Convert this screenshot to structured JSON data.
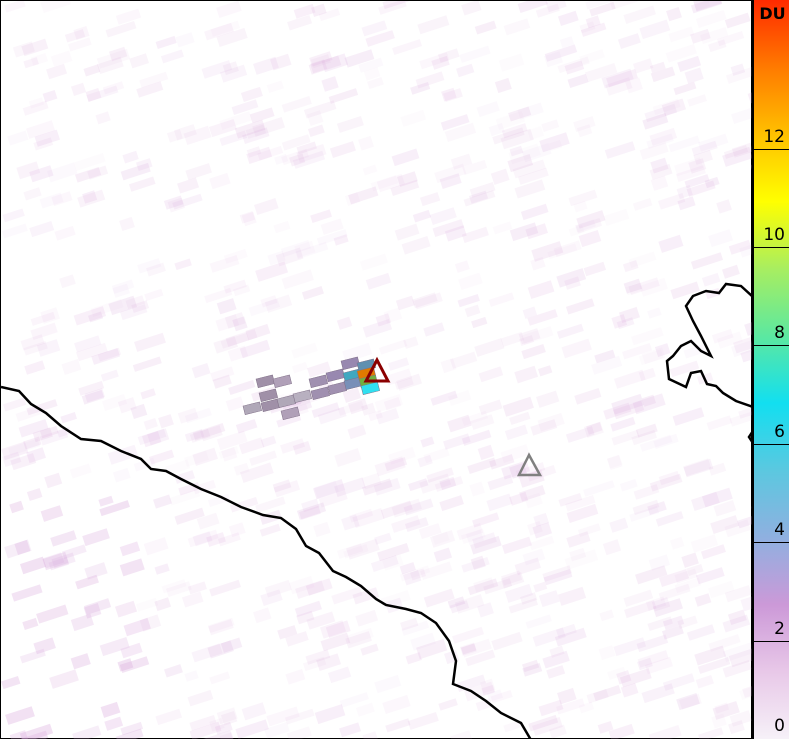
{
  "colorbar": {
    "unit": "DU",
    "ticks": [
      "0",
      "2",
      "4",
      "6",
      "8",
      "10",
      "12"
    ],
    "range": [
      0,
      15
    ],
    "stops": [
      "#f6f1f8",
      "#e8c8e8",
      "#cc99d8",
      "#8fb0e0",
      "#5bc8e0",
      "#12dff0",
      "#5ce8a0",
      "#a8ee60",
      "#ffff00",
      "#ffc000",
      "#ff7a00",
      "#ff2a00"
    ]
  },
  "markers": [
    {
      "name": "active-volcano",
      "color": "#8b0000"
    },
    {
      "name": "volcano",
      "color": "#808080"
    }
  ],
  "colors": {
    "coastline": "#000000",
    "background_noise": "#d9a8dc"
  }
}
